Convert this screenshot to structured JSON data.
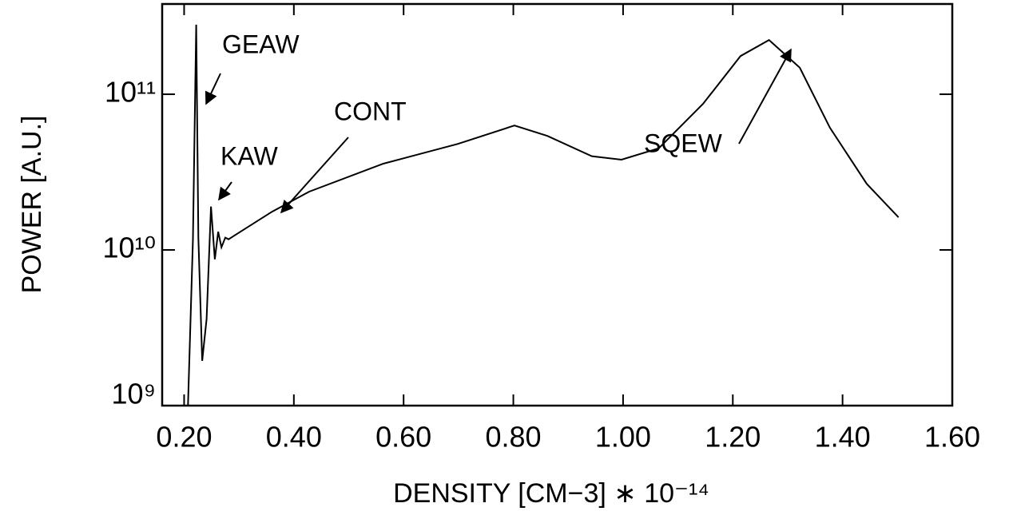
{
  "chart_data": {
    "type": "line",
    "xlabel": "DENSITY [CM−3] ∗ 10⁻¹⁴",
    "ylabel": "POWER [A.U.]",
    "x": [
      0.207,
      0.216,
      0.222,
      0.226,
      0.233,
      0.241,
      0.249,
      0.256,
      0.262,
      0.268,
      0.275,
      0.281,
      0.292,
      0.36,
      0.428,
      0.563,
      0.699,
      0.802,
      0.862,
      0.943,
      0.997,
      1.065,
      1.146,
      1.214,
      1.266,
      1.322,
      1.377,
      1.444,
      1.502
    ],
    "values": [
      1000000000,
      11700000000,
      280000000000,
      12000000000,
      1940000000,
      3600000000,
      19000000000,
      8700000000,
      13100000000,
      10400000000,
      12000000000,
      11700000000,
      12400000000,
      17600000000,
      23700000000,
      35800000000,
      48000000000,
      63000000000,
      54000000000,
      40000000000,
      38000000000,
      45000000000,
      87000000000,
      176000000000,
      223000000000,
      148000000000,
      61000000000,
      26600000000,
      16200000000
    ],
    "color": "#000000",
    "log_y": true,
    "xlim": [
      0.16,
      1.6
    ],
    "ylim": [
      1000000000,
      380000000000
    ],
    "xticks": [
      {
        "value": 0.2,
        "label": "0.20"
      },
      {
        "value": 0.4,
        "label": "0.40"
      },
      {
        "value": 0.6,
        "label": "0.60"
      },
      {
        "value": 0.8,
        "label": "0.80"
      },
      {
        "value": 1.0,
        "label": "1.00"
      },
      {
        "value": 1.2,
        "label": "1.20"
      },
      {
        "value": 1.4,
        "label": "1.40"
      },
      {
        "value": 1.6,
        "label": "1.60"
      }
    ],
    "yticks": [
      {
        "value": 1000000000,
        "label": "10⁹"
      },
      {
        "value": 10000000000,
        "label": "10¹⁰"
      },
      {
        "value": 100000000000,
        "label": "10¹¹"
      }
    ],
    "annotations": [
      "GEAW",
      "KAW",
      "CONT",
      "SQEW"
    ]
  }
}
